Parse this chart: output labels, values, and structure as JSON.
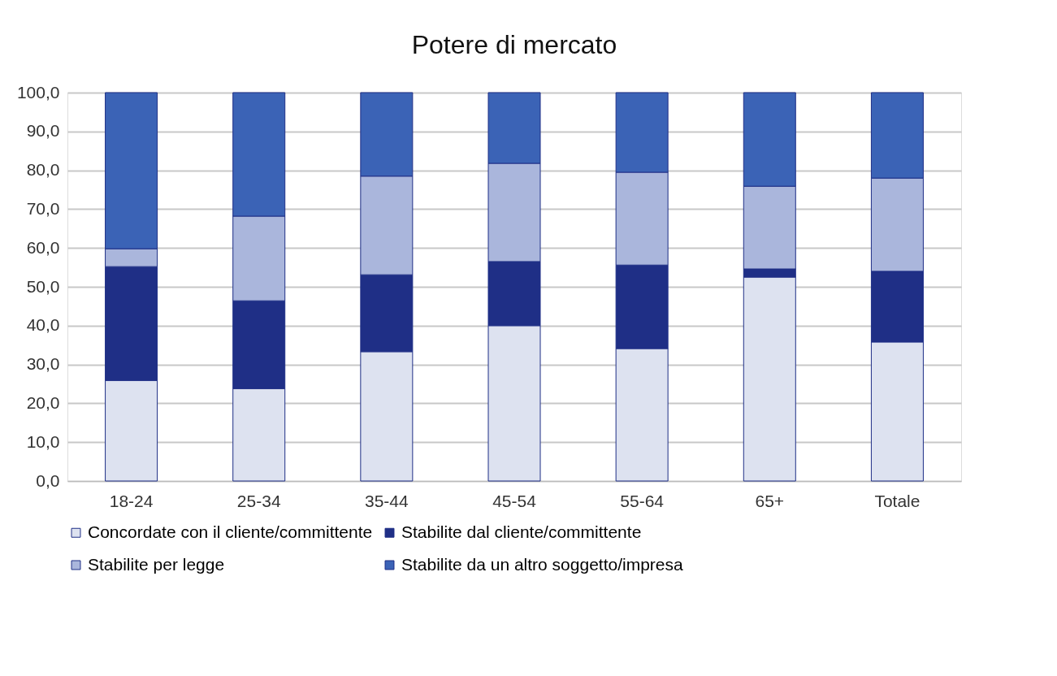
{
  "chart_data": {
    "type": "bar",
    "title": "Potere di mercato",
    "stacked": true,
    "categories": [
      "18-24",
      "25-34",
      "35-44",
      "45-54",
      "55-64",
      "65+",
      "Totale"
    ],
    "series": [
      {
        "name": "Concordate con il cliente/committente",
        "color": "#dde2f0",
        "values": [
          25.9,
          23.8,
          33.3,
          40.0,
          34.1,
          52.5,
          35.8
        ]
      },
      {
        "name": "Stabilite dal cliente/committente",
        "color": "#1f2f86",
        "values": [
          29.3,
          22.6,
          19.8,
          16.5,
          21.5,
          2.1,
          18.2
        ]
      },
      {
        "name": "Stabilite per legge",
        "color": "#aab6dc",
        "values": [
          4.6,
          21.8,
          25.4,
          25.3,
          23.9,
          21.3,
          24.0
        ]
      },
      {
        "name": "Stabilite da un altro soggetto/impresa",
        "color": "#3b63b6",
        "values": [
          40.2,
          31.8,
          21.5,
          18.2,
          20.5,
          24.1,
          22.0
        ]
      }
    ],
    "ylim": [
      0,
      100
    ],
    "yticks": [
      {
        "value": 0,
        "label": "0,0"
      },
      {
        "value": 10,
        "label": "10,0"
      },
      {
        "value": 20,
        "label": "20,0"
      },
      {
        "value": 30,
        "label": "30,0"
      },
      {
        "value": 40,
        "label": "40,0"
      },
      {
        "value": 50,
        "label": "50,0"
      },
      {
        "value": 60,
        "label": "60,0"
      },
      {
        "value": 70,
        "label": "70,0"
      },
      {
        "value": 80,
        "label": "80,0"
      },
      {
        "value": 90,
        "label": "90,0"
      },
      {
        "value": 100,
        "label": "100,0"
      }
    ],
    "grid": "y",
    "legend": "bottom"
  }
}
